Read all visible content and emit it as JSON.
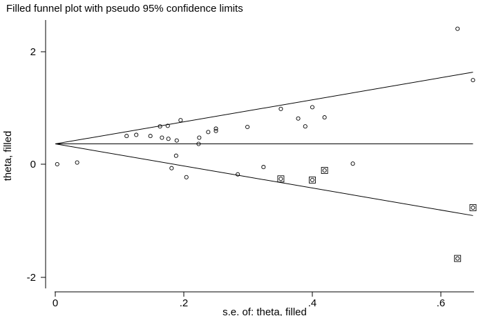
{
  "chart_data": {
    "type": "scatter",
    "title": "Filled funnel plot with pseudo 95% confidence limits",
    "xlabel": "s.e. of: theta, filled",
    "ylabel": "theta, filled",
    "xlim": [
      0,
      0.655
    ],
    "ylim": [
      -2.1,
      2.6
    ],
    "x_ticks": [
      0,
      0.2,
      0.4,
      0.6
    ],
    "x_tick_labels": [
      "0",
      ".2",
      ".4",
      ".6"
    ],
    "y_ticks": [
      2,
      0,
      -2
    ],
    "y_tick_labels": [
      "2",
      "0",
      "-2"
    ],
    "grid": false,
    "legend": "none",
    "pooled_estimate": 0.36,
    "funnel_limits": {
      "upper": [
        [
          0,
          0.36
        ],
        [
          0.65,
          1.63
        ]
      ],
      "lower": [
        [
          0,
          0.36
        ],
        [
          0.65,
          -0.91
        ]
      ]
    },
    "series": [
      {
        "marker": "circle",
        "points": [
          [
            0.003,
            0.0
          ],
          [
            0.034,
            0.03
          ],
          [
            0.111,
            0.5
          ],
          [
            0.126,
            0.52
          ],
          [
            0.148,
            0.5
          ],
          [
            0.163,
            0.67
          ],
          [
            0.166,
            0.47
          ],
          [
            0.175,
            0.68
          ],
          [
            0.176,
            0.45
          ],
          [
            0.181,
            -0.07
          ],
          [
            0.188,
            0.15
          ],
          [
            0.189,
            0.42
          ],
          [
            0.195,
            0.78
          ],
          [
            0.204,
            -0.23
          ],
          [
            0.223,
            0.36
          ],
          [
            0.224,
            0.47
          ],
          [
            0.238,
            0.57
          ],
          [
            0.25,
            0.63
          ],
          [
            0.25,
            0.59
          ],
          [
            0.284,
            -0.18
          ],
          [
            0.299,
            0.66
          ],
          [
            0.324,
            -0.05
          ],
          [
            0.351,
            0.98
          ],
          [
            0.378,
            0.81
          ],
          [
            0.389,
            0.67
          ],
          [
            0.4,
            1.01
          ],
          [
            0.419,
            0.83
          ],
          [
            0.463,
            0.01
          ],
          [
            0.626,
            2.4
          ],
          [
            0.65,
            1.49
          ],
          [
            0.351,
            -0.26
          ],
          [
            0.4,
            -0.28
          ],
          [
            0.419,
            -0.11
          ],
          [
            0.626,
            -1.67
          ],
          [
            0.65,
            -0.77
          ]
        ]
      },
      {
        "marker": "square",
        "points": [
          [
            0.351,
            -0.26
          ],
          [
            0.4,
            -0.28
          ],
          [
            0.419,
            -0.11
          ],
          [
            0.626,
            -1.67
          ],
          [
            0.65,
            -0.77
          ]
        ]
      }
    ]
  }
}
